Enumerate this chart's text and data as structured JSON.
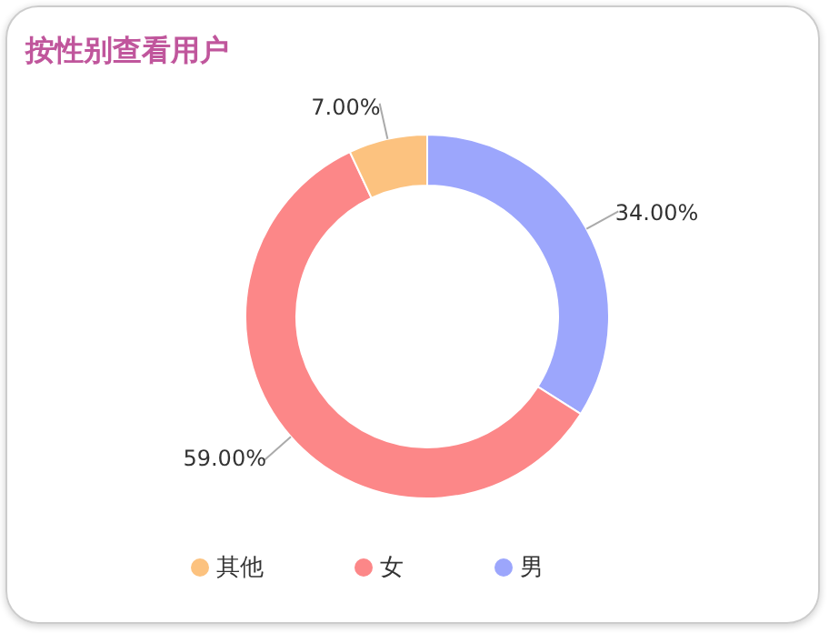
{
  "chart_data": {
    "type": "donut",
    "title": "按性别查看用户",
    "categories": [
      "男",
      "女",
      "其他"
    ],
    "values": [
      34,
      59,
      7
    ],
    "colors": [
      "#9ca6fc",
      "#fc8788",
      "#fcc27f"
    ],
    "value_labels": [
      "34.00%",
      "59.00%",
      "7.00%"
    ],
    "legend": "bottom"
  }
}
